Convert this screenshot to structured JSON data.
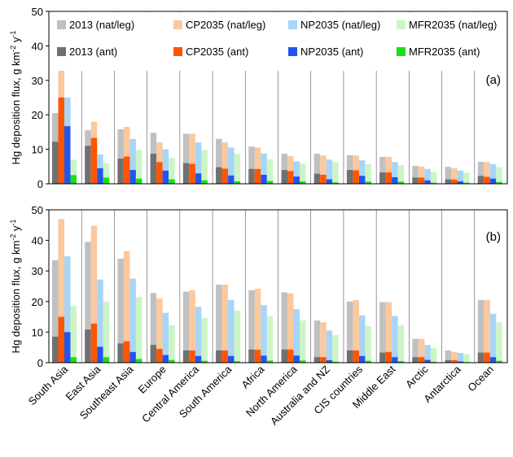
{
  "chart_data": [
    {
      "type": "bar",
      "panel_label": "(a)",
      "ylabel": "Hg deposition flux, g km² y⁻¹",
      "ylim": [
        0,
        50
      ],
      "yticks": [
        0,
        10,
        20,
        30,
        40,
        50
      ],
      "grid": false,
      "legend_position": "top",
      "categories": [
        "South Asia",
        "East Asia",
        "Southeast Asia",
        "Europe",
        "Central America",
        "South America",
        "Africa",
        "North America",
        "Australia and NZ",
        "CIS countries",
        "Middle East",
        "Arctic",
        "Antarctica",
        "Ocean"
      ],
      "series": [
        {
          "name": "2013 (nat/leg)",
          "color": "#c0c0c0",
          "values": [
            20.5,
            15.5,
            15.8,
            14.8,
            14.5,
            13.0,
            10.8,
            8.7,
            8.7,
            8.3,
            7.8,
            5.2,
            4.9,
            6.4
          ]
        },
        {
          "name": "2013 (ant)",
          "color": "#707070",
          "values": [
            12.2,
            11.0,
            7.3,
            8.7,
            6.0,
            4.8,
            4.3,
            4.0,
            2.9,
            4.0,
            3.3,
            1.8,
            1.3,
            2.3
          ]
        },
        {
          "name": "CP2035 (nat/leg)",
          "color": "#fcc89e",
          "values": [
            33.0,
            18.0,
            16.5,
            12.0,
            14.5,
            12.0,
            10.5,
            8.0,
            8.2,
            8.2,
            7.8,
            5.0,
            4.5,
            6.3
          ]
        },
        {
          "name": "CP2035 (ant)",
          "color": "#ff5500",
          "values": [
            25.0,
            13.3,
            7.9,
            6.3,
            5.8,
            4.4,
            4.3,
            3.7,
            2.6,
            3.9,
            3.3,
            1.8,
            1.2,
            2.0
          ]
        },
        {
          "name": "NP2035 (nat/leg)",
          "color": "#a7d5f7",
          "values": [
            25.0,
            8.5,
            13.0,
            10.0,
            12.0,
            10.5,
            8.8,
            6.5,
            7.0,
            6.8,
            6.3,
            4.3,
            3.8,
            5.7
          ]
        },
        {
          "name": "NP2035 (ant)",
          "color": "#2255ee",
          "values": [
            16.7,
            4.5,
            4.0,
            3.8,
            3.0,
            2.4,
            2.6,
            2.1,
            1.3,
            2.3,
            1.9,
            1.0,
            0.7,
            1.5
          ]
        },
        {
          "name": "MFR2035 (nat/leg)",
          "color": "#ccf5c6",
          "values": [
            7.0,
            6.0,
            9.8,
            7.5,
            9.8,
            8.7,
            7.2,
            5.8,
            6.3,
            5.7,
            5.4,
            3.5,
            3.2,
            4.8
          ]
        },
        {
          "name": "MFR2035 (ant)",
          "color": "#19e019",
          "values": [
            2.5,
            1.8,
            1.5,
            1.3,
            1.0,
            0.7,
            0.8,
            0.7,
            0.4,
            0.6,
            0.6,
            0.3,
            0.3,
            0.5
          ]
        }
      ]
    },
    {
      "type": "bar",
      "panel_label": "(b)",
      "ylabel": "Hg deposition flux, g km² y⁻¹",
      "ylim": [
        0,
        50
      ],
      "yticks": [
        0,
        10,
        20,
        30,
        40,
        50
      ],
      "grid": false,
      "categories": [
        "South Asia",
        "East Asia",
        "Southeast Asia",
        "Europe",
        "Central America",
        "South America",
        "Africa",
        "North America",
        "Australia and NZ",
        "CIS countries",
        "Middle East",
        "Arctic",
        "Antarctica",
        "Ocean"
      ],
      "series": [
        {
          "name": "2013 (nat/leg)",
          "color": "#c0c0c0",
          "values": [
            33.5,
            39.5,
            34.0,
            22.8,
            23.2,
            25.5,
            23.7,
            23.0,
            13.8,
            20.0,
            19.8,
            7.8,
            4.0,
            20.5
          ]
        },
        {
          "name": "2013 (ant)",
          "color": "#707070",
          "values": [
            8.5,
            10.8,
            6.3,
            5.8,
            4.0,
            4.0,
            4.3,
            4.3,
            1.8,
            4.0,
            3.3,
            1.8,
            0.8,
            3.3
          ]
        },
        {
          "name": "CP2035 (nat/leg)",
          "color": "#fcc89e",
          "values": [
            47.0,
            44.8,
            36.5,
            21.0,
            23.7,
            25.5,
            24.2,
            22.7,
            13.2,
            20.5,
            19.8,
            7.8,
            3.5,
            20.5
          ]
        },
        {
          "name": "CP2035 (ant)",
          "color": "#ff5500",
          "values": [
            15.0,
            12.8,
            7.0,
            4.5,
            4.0,
            4.0,
            4.2,
            4.3,
            1.8,
            4.0,
            3.5,
            1.8,
            0.8,
            3.3
          ]
        },
        {
          "name": "NP2035 (nat/leg)",
          "color": "#a7d5f7",
          "values": [
            34.8,
            27.2,
            27.5,
            16.3,
            18.3,
            20.5,
            18.8,
            17.5,
            10.5,
            15.5,
            15.3,
            5.8,
            3.2,
            16.0
          ]
        },
        {
          "name": "NP2035 (ant)",
          "color": "#2255ee",
          "values": [
            10.0,
            5.2,
            3.5,
            2.5,
            2.2,
            2.2,
            2.3,
            2.3,
            0.8,
            2.2,
            1.8,
            0.9,
            0.4,
            1.8
          ]
        },
        {
          "name": "MFR2035 (nat/leg)",
          "color": "#ccf5c6",
          "values": [
            18.5,
            20.0,
            21.5,
            12.3,
            14.7,
            17.0,
            15.2,
            13.8,
            9.0,
            12.0,
            12.2,
            4.8,
            2.8,
            13.2
          ]
        },
        {
          "name": "MFR2035 (ant)",
          "color": "#19e019",
          "values": [
            1.8,
            1.8,
            1.2,
            0.9,
            0.6,
            0.5,
            0.7,
            0.7,
            0.3,
            0.6,
            0.5,
            0.3,
            0.2,
            0.6
          ]
        }
      ]
    }
  ]
}
